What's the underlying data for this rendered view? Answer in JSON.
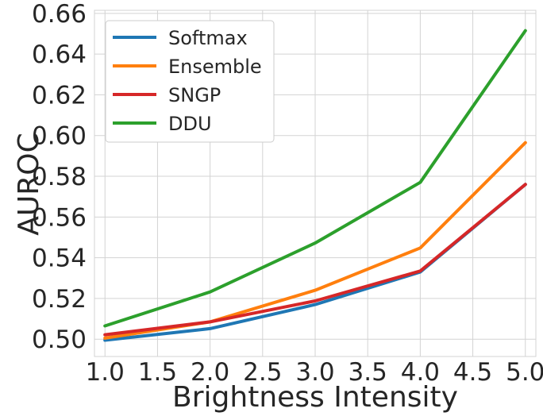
{
  "chart_data": {
    "type": "line",
    "xlabel": "Brightness Intensity",
    "ylabel": "AUROC",
    "x": [
      1.0,
      2.0,
      3.0,
      4.0,
      5.0
    ],
    "xlim": [
      0.9,
      5.1
    ],
    "ylim": [
      0.4915,
      0.6615
    ],
    "xticks": [
      "1.0",
      "1.5",
      "2.0",
      "2.5",
      "3.0",
      "3.5",
      "4.0",
      "4.5",
      "5.0"
    ],
    "yticks": [
      "0.50",
      "0.52",
      "0.54",
      "0.56",
      "0.58",
      "0.60",
      "0.62",
      "0.64",
      "0.66"
    ],
    "grid": true,
    "legend_position": "top-left",
    "series": [
      {
        "name": "Softmax",
        "color": "#1f77b4",
        "values": [
          0.4995,
          0.5052,
          0.517,
          0.533,
          0.576
        ]
      },
      {
        "name": "Ensemble",
        "color": "#ff7f0e",
        "values": [
          0.5005,
          0.5085,
          0.524,
          0.5448,
          0.5965
        ]
      },
      {
        "name": "SNGP",
        "color": "#d62728",
        "values": [
          0.5022,
          0.5085,
          0.5188,
          0.5335,
          0.576
        ]
      },
      {
        "name": "DDU",
        "color": "#2ca02c",
        "values": [
          0.5065,
          0.5232,
          0.5472,
          0.577,
          0.6515
        ]
      }
    ]
  }
}
